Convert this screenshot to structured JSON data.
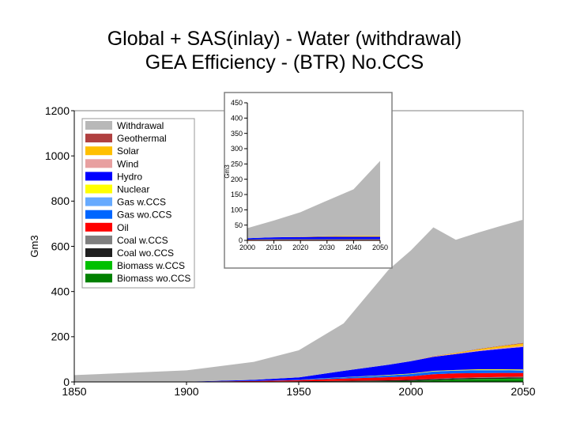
{
  "page": {
    "title_line1": "Global + SAS(inlay) - Water (withdrawal)",
    "title_line2": "GEA Efficiency - (BTR) No.CCS"
  },
  "chart_data": [
    {
      "type": "area",
      "stacked": true,
      "title": "Global + SAS(inlay) - Water (withdrawal)\nGEA Efficiency - (BTR) No.CCS",
      "xlabel": "",
      "ylabel": "Gm3",
      "xlim": [
        1850,
        2050
      ],
      "ylim": [
        0,
        1200
      ],
      "xticks": [
        1850,
        1900,
        1950,
        2000,
        2050
      ],
      "yticks": [
        0,
        200,
        400,
        600,
        800,
        1000,
        1200
      ],
      "legend_position": "top-left",
      "x": [
        1850,
        1900,
        1930,
        1950,
        1970,
        1990,
        2000,
        2010,
        2020,
        2030,
        2040,
        2050
      ],
      "series": [
        {
          "name": "Biomass wo.CCS",
          "color": "#008000",
          "values": [
            0,
            0,
            0,
            1,
            2,
            3,
            4,
            7,
            9,
            10,
            10,
            10
          ]
        },
        {
          "name": "Biomass w.CCS",
          "color": "#00c000",
          "values": [
            0,
            0,
            0,
            0,
            0,
            0,
            0,
            1,
            2,
            3,
            4,
            5
          ]
        },
        {
          "name": "Coal wo.CCS",
          "color": "#202020",
          "values": [
            0,
            0,
            1,
            2,
            3,
            4,
            5,
            5,
            5,
            5,
            5,
            5
          ]
        },
        {
          "name": "Coal w.CCS",
          "color": "#808080",
          "values": [
            0,
            0,
            0,
            0,
            0,
            0,
            0,
            1,
            2,
            2,
            3,
            3
          ]
        },
        {
          "name": "Oil",
          "color": "#ff0000",
          "values": [
            0,
            1,
            3,
            5,
            10,
            14,
            16,
            20,
            20,
            19,
            18,
            17
          ]
        },
        {
          "name": "Gas wo.CCS",
          "color": "#0066ff",
          "values": [
            0,
            0,
            1,
            2,
            5,
            8,
            10,
            12,
            12,
            12,
            11,
            10
          ]
        },
        {
          "name": "Gas w.CCS",
          "color": "#66aaff",
          "values": [
            0,
            0,
            0,
            0,
            0,
            0,
            0,
            1,
            1,
            2,
            2,
            2
          ]
        },
        {
          "name": "Nuclear",
          "color": "#ffff00",
          "values": [
            0,
            0,
            0,
            0,
            1,
            2,
            2,
            2,
            2,
            3,
            3,
            3
          ]
        },
        {
          "name": "Hydro",
          "color": "#0000ff",
          "values": [
            0,
            0,
            4,
            10,
            28,
            45,
            55,
            62,
            70,
            80,
            90,
            100
          ]
        },
        {
          "name": "Wind",
          "color": "#e8a0a0",
          "values": [
            0,
            0,
            0,
            0,
            0,
            0,
            0,
            1,
            2,
            3,
            4,
            5
          ]
        },
        {
          "name": "Solar",
          "color": "#ffc000",
          "values": [
            0,
            0,
            0,
            0,
            0,
            0,
            0,
            1,
            3,
            5,
            8,
            10
          ]
        },
        {
          "name": "Geothermal",
          "color": "#b04040",
          "values": [
            0,
            0,
            0,
            0,
            0,
            0,
            0,
            1,
            1,
            2,
            2,
            3
          ]
        },
        {
          "name": "Withdrawal",
          "color": "#b8b8b8",
          "values": [
            30,
            50,
            80,
            120,
            210,
            420,
            490,
            570,
            500,
            515,
            530,
            545
          ]
        }
      ]
    },
    {
      "type": "area",
      "stacked": true,
      "title": "",
      "xlabel": "",
      "ylabel": "Gm3",
      "xlim": [
        2000,
        2050
      ],
      "ylim": [
        0,
        450
      ],
      "xticks": [
        2000,
        2010,
        2020,
        2030,
        2040,
        2050
      ],
      "yticks": [
        0,
        50,
        100,
        150,
        200,
        250,
        300,
        350,
        400,
        450
      ],
      "x": [
        2000,
        2010,
        2020,
        2030,
        2040,
        2050
      ],
      "series": [
        {
          "name": "Biomass wo.CCS",
          "color": "#008000",
          "values": [
            0.5,
            1,
            1,
            1,
            1,
            1
          ]
        },
        {
          "name": "Coal wo.CCS",
          "color": "#202020",
          "values": [
            1,
            1,
            1,
            1,
            1,
            1
          ]
        },
        {
          "name": "Oil",
          "color": "#ff0000",
          "values": [
            1,
            1,
            1,
            1,
            1,
            1
          ]
        },
        {
          "name": "Gas wo.CCS",
          "color": "#0066ff",
          "values": [
            1.5,
            2,
            2,
            2,
            2,
            2
          ]
        },
        {
          "name": "Hydro",
          "color": "#0000ff",
          "values": [
            3,
            5,
            6,
            7,
            7,
            7
          ]
        },
        {
          "name": "Solar",
          "color": "#ffc000",
          "values": [
            0,
            0,
            1,
            2,
            3,
            3
          ]
        },
        {
          "name": "Withdrawal",
          "color": "#b8b8b8",
          "values": [
            33,
            55,
            80,
            116,
            152,
            245
          ]
        }
      ]
    }
  ]
}
